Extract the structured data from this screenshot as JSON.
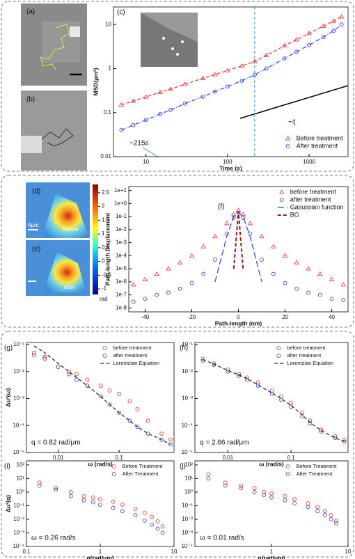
{
  "chart_data": [
    {
      "type": "scatter",
      "label": "(c)",
      "xlabel": "Time (s)",
      "ylabel": "MSD(μm²)",
      "xlog": true,
      "ylog": true,
      "xlim": [
        4,
        3000
      ],
      "ylim": [
        0.01,
        25
      ],
      "xticks": [
        10,
        100,
        1000
      ],
      "yticks": [
        0.01,
        0.1,
        1,
        10
      ],
      "legend": "lower right",
      "vline_x": 215,
      "annotations": [
        "~215s",
        "~t"
      ],
      "x": [
        5,
        7,
        10,
        15,
        20,
        30,
        50,
        70,
        100,
        150,
        215,
        300,
        500,
        700,
        1000,
        1500,
        2000,
        2500
      ],
      "series": [
        {
          "name": "Before treatment",
          "color": "#e8322f",
          "marker": "triangle",
          "line": "dash",
          "values": [
            0.15,
            0.183,
            0.227,
            0.29,
            0.34,
            0.44,
            0.6,
            0.73,
            0.9,
            1.15,
            1.45,
            2.0,
            3.3,
            4.5,
            6.3,
            9.2,
            12,
            15
          ]
        },
        {
          "name": "After treatment",
          "color": "#2a3ee8",
          "marker": "circle",
          "line": "dashdot",
          "values": [
            0.04,
            0.052,
            0.068,
            0.093,
            0.115,
            0.16,
            0.23,
            0.3,
            0.39,
            0.53,
            0.72,
            1.0,
            1.7,
            2.4,
            3.4,
            5.2,
            7.2,
            10
          ]
        }
      ]
    },
    {
      "type": "scatter",
      "label": "(f)",
      "xlabel": "Path-length (nm)",
      "ylabel": "Path-length Displacement",
      "xlog": false,
      "ylog": true,
      "xlim": [
        -47,
        47
      ],
      "ylim": [
        5e-09,
        20
      ],
      "xticks": [
        -40,
        -20,
        0,
        20,
        40
      ],
      "yticks": [
        {
          "value": 1e-08,
          "label": "1e-8"
        },
        {
          "value": 1e-07,
          "label": "1e-7"
        },
        {
          "value": 1e-06,
          "label": "1e-6"
        },
        {
          "value": 1e-05,
          "label": "1e-5"
        },
        {
          "value": 0.0001,
          "label": "1e-4"
        },
        {
          "value": 0.001,
          "label": "1e-3"
        },
        {
          "value": 0.01,
          "label": "1e-2"
        },
        {
          "value": 0.1,
          "label": "1e-1"
        },
        {
          "value": 1,
          "label": "1e+0"
        },
        {
          "value": 10,
          "label": "1e+1"
        }
      ],
      "legend": "upper right",
      "annotations": [],
      "x": [
        -45,
        -40,
        -35,
        -30,
        -25,
        -20,
        -15,
        -10,
        -5,
        -2,
        0,
        2,
        5,
        10,
        15,
        20,
        25,
        30,
        35,
        40,
        45
      ],
      "series": [
        {
          "name": "before treatment",
          "color": "#e8322f",
          "marker": "triangle",
          "line": "none",
          "values": [
            6e-07,
            1.5e-06,
            4e-06,
            1e-05,
            3e-05,
            0.0001,
            0.0005,
            0.003,
            0.03,
            0.15,
            0.3,
            0.15,
            0.03,
            0.003,
            0.0005,
            0.0001,
            3e-05,
            1e-05,
            4e-06,
            1.5e-06,
            6e-07
          ]
        },
        {
          "name": "after treatment",
          "color": "#3a3ec8",
          "marker": "circle",
          "line": "none",
          "values": [
            3e-08,
            5e-08,
            1e-07,
            1.5e-07,
            3e-07,
            8e-07,
            4e-06,
            5e-05,
            0.005,
            0.08,
            0.2,
            0.08,
            0.005,
            5e-05,
            4e-06,
            8e-07,
            3e-07,
            1.5e-07,
            1e-07,
            5e-08,
            4e-08
          ]
        },
        {
          "name": "Gasussian function",
          "color": "#2a3ee8",
          "marker": "none",
          "line": "longdash",
          "values": [
            null,
            null,
            null,
            null,
            null,
            null,
            null,
            1e-06,
            0.003,
            0.1,
            0.2,
            0.1,
            0.003,
            1e-06,
            null,
            null,
            null,
            null,
            null,
            null,
            null
          ]
        },
        {
          "name": "BG",
          "color": "#8b1a1a",
          "marker": "none",
          "line": "dash",
          "values": [
            null,
            null,
            null,
            null,
            null,
            null,
            null,
            null,
            null,
            1e-05,
            0.25,
            1e-05,
            null,
            null,
            null,
            null,
            null,
            null,
            null,
            null,
            null
          ]
        }
      ]
    },
    {
      "type": "scatter",
      "label": "(g)",
      "xlabel": "ω (rad/s)",
      "ylabel": "Δu²(ω)",
      "xlog": true,
      "ylog": true,
      "xlim": [
        0.003,
        0.8
      ],
      "ylim": [
        1e-05,
        0.12
      ],
      "xticks": [
        0.01,
        0.1
      ],
      "yticks": [
        {
          "value": 1e-05,
          "label": "10⁻⁵"
        },
        {
          "value": 0.0001,
          "label": "10⁻⁴"
        },
        {
          "value": 0.001,
          "label": "10⁻³"
        },
        {
          "value": 0.01,
          "label": "10⁻²"
        },
        {
          "value": 0.1,
          "label": "10⁻¹"
        }
      ],
      "legend": "upper right",
      "annotations": [
        "q = 0.82 rad/μm"
      ],
      "x": [
        0.004,
        0.006,
        0.01,
        0.015,
        0.02,
        0.03,
        0.05,
        0.07,
        0.1,
        0.15,
        0.2,
        0.3,
        0.5,
        0.7
      ],
      "series": [
        {
          "name": "before treatment",
          "color": "#e8322f",
          "marker": "circle",
          "line": "none",
          "values": [
            0.04,
            0.03,
            0.015,
            0.01,
            0.008,
            0.005,
            0.003,
            0.002,
            0.0015,
            0.0008,
            0.0004,
            0.00015,
            5e-05,
            3e-05
          ]
        },
        {
          "name": "after treatment",
          "color": "#3a3ec8",
          "marker": "circle",
          "line": "none",
          "values": [
            0.05,
            0.035,
            0.015,
            0.008,
            0.005,
            0.003,
            0.0012,
            0.0006,
            0.0003,
            0.00015,
            9e-05,
            5e-05,
            3e-05,
            2e-05
          ]
        },
        {
          "name": "Lorentzian Equation",
          "color": "#222222",
          "marker": "none",
          "line": "dash",
          "values": [
            0.09,
            0.05,
            0.02,
            0.01,
            0.006,
            0.003,
            0.0012,
            0.0006,
            0.0003,
            0.00015,
            9e-05,
            5e-05,
            3e-05,
            2e-05
          ]
        }
      ]
    },
    {
      "type": "scatter",
      "label": "(h)",
      "xlabel": "ω (rad/s)",
      "xlog": true,
      "ylog": true,
      "xlim": [
        0.003,
        0.8
      ],
      "ylim": [
        1e-05,
        0.12
      ],
      "xticks": [
        0.01,
        0.1
      ],
      "yticks": [
        {
          "value": 1e-05,
          "label": "10⁻⁵"
        },
        {
          "value": 0.0001,
          "label": "10⁻⁴"
        },
        {
          "value": 0.001,
          "label": "10⁻³"
        },
        {
          "value": 0.01,
          "label": "10⁻²"
        },
        {
          "value": 0.1,
          "label": "10⁻¹"
        }
      ],
      "legend": "upper right",
      "annotations": [
        "q = 2.66 rad/μm"
      ],
      "x": [
        0.004,
        0.006,
        0.01,
        0.015,
        0.02,
        0.03,
        0.05,
        0.07,
        0.1,
        0.15,
        0.2,
        0.3,
        0.5,
        0.7
      ],
      "series": [
        {
          "name": "before treatment",
          "color": "#e8322f",
          "marker": "circle",
          "line": "none",
          "values": [
            0.03,
            0.02,
            0.012,
            0.008,
            0.006,
            0.004,
            0.002,
            0.0012,
            0.0007,
            0.0003,
            0.00015,
            7e-05,
            4e-05,
            3e-05
          ]
        },
        {
          "name": "after treatment",
          "color": "#3a3ec8",
          "marker": "circle",
          "line": "none",
          "values": [
            0.025,
            0.018,
            0.01,
            0.007,
            0.005,
            0.003,
            0.0015,
            0.0009,
            0.0005,
            0.00022,
            0.00012,
            6e-05,
            3.5e-05,
            2.5e-05
          ]
        },
        {
          "name": "Lorentzian Equation",
          "color": "#222222",
          "marker": "none",
          "line": "dash",
          "values": [
            0.028,
            0.019,
            0.011,
            0.0075,
            0.0055,
            0.0032,
            0.0016,
            0.001,
            0.00055,
            0.00025,
            0.00013,
            6.5e-05,
            3.5e-05,
            2.5e-05
          ]
        }
      ]
    },
    {
      "type": "scatter",
      "label": "(i)",
      "xlabel": "q(rad/μm)",
      "ylabel": "Δu²(q)",
      "xlog": true,
      "ylog": true,
      "xlim": [
        0.1,
        10
      ],
      "ylim": [
        0.0001,
        200
      ],
      "xticks": [
        0.1,
        1,
        10
      ],
      "yticks": [
        {
          "value": 0.0001,
          "label": "10⁻⁴"
        },
        {
          "value": 0.001,
          "label": "10⁻³"
        },
        {
          "value": 0.01,
          "label": "10⁻²"
        },
        {
          "value": 0.1,
          "label": "10⁻¹"
        },
        {
          "value": 1,
          "label": "10⁰"
        },
        {
          "value": 10,
          "label": "10¹"
        },
        {
          "value": 100,
          "label": "10²"
        }
      ],
      "legend": "upper right",
      "annotations": [
        "ω = 0.26 rad/s"
      ],
      "x": [
        0.15,
        0.25,
        0.4,
        0.6,
        0.8,
        1,
        1.5,
        2,
        3,
        4,
        5,
        6,
        7
      ],
      "series": [
        {
          "name": "Before Treatment",
          "color": "#e8322f",
          "marker": "circle",
          "line": "none",
          "values": [
            5,
            2,
            1,
            0.5,
            0.4,
            0.3,
            0.2,
            0.12,
            0.06,
            0.03,
            0.015,
            0.007,
            0.003
          ]
        },
        {
          "name": "After Treatment",
          "color": "#3a3ec8",
          "marker": "circle",
          "line": "none",
          "values": [
            3,
            1.5,
            0.5,
            0.25,
            0.18,
            0.12,
            0.07,
            0.04,
            0.02,
            0.008,
            0.004,
            0.002,
            0.001
          ]
        }
      ]
    },
    {
      "type": "scatter",
      "label": "(j)",
      "xlabel": "q(rad/μm)",
      "xlog": true,
      "ylog": true,
      "xlim": [
        0.1,
        10
      ],
      "ylim": [
        0.0001,
        200
      ],
      "xticks": [
        1,
        10
      ],
      "yticks": [
        {
          "value": 0.0001,
          "label": "10⁻⁴"
        },
        {
          "value": 0.001,
          "label": "10⁻³"
        },
        {
          "value": 0.01,
          "label": "10⁻²"
        },
        {
          "value": 0.1,
          "label": "10⁻¹"
        },
        {
          "value": 1,
          "label": "10⁰"
        },
        {
          "value": 10,
          "label": "10¹"
        },
        {
          "value": 100,
          "label": "10²"
        }
      ],
      "legend": "upper right",
      "annotations": [
        "ω = 0.01 rad/s"
      ],
      "x": [
        0.15,
        0.25,
        0.4,
        0.6,
        0.8,
        1,
        1.5,
        2,
        3,
        4,
        5,
        6,
        7
      ],
      "series": [
        {
          "name": "Before Treatment",
          "color": "#e8322f",
          "marker": "circle",
          "line": "none",
          "values": [
            20,
            5,
            3,
            2,
            1,
            0.8,
            0.5,
            0.3,
            0.15,
            0.08,
            0.04,
            0.02,
            0.008
          ]
        },
        {
          "name": "After Treatment",
          "color": "#3a3ec8",
          "marker": "circle",
          "line": "none",
          "values": [
            10,
            3,
            2,
            1,
            0.6,
            0.4,
            0.25,
            0.15,
            0.08,
            0.04,
            0.02,
            0.01,
            0.005
          ]
        }
      ]
    }
  ],
  "images": [
    {
      "label": "(a)"
    },
    {
      "label": "(b)"
    },
    {
      "label": "(d)",
      "text": "before",
      "scale": "4μm"
    },
    {
      "label": "(e)",
      "text": "after"
    }
  ],
  "colorbar": {
    "lim": [
      -1.2,
      2.8
    ],
    "ticks": [
      2.5,
      2,
      1.5,
      1,
      0.5,
      0,
      -0.5,
      -1
    ],
    "label": "rad"
  }
}
